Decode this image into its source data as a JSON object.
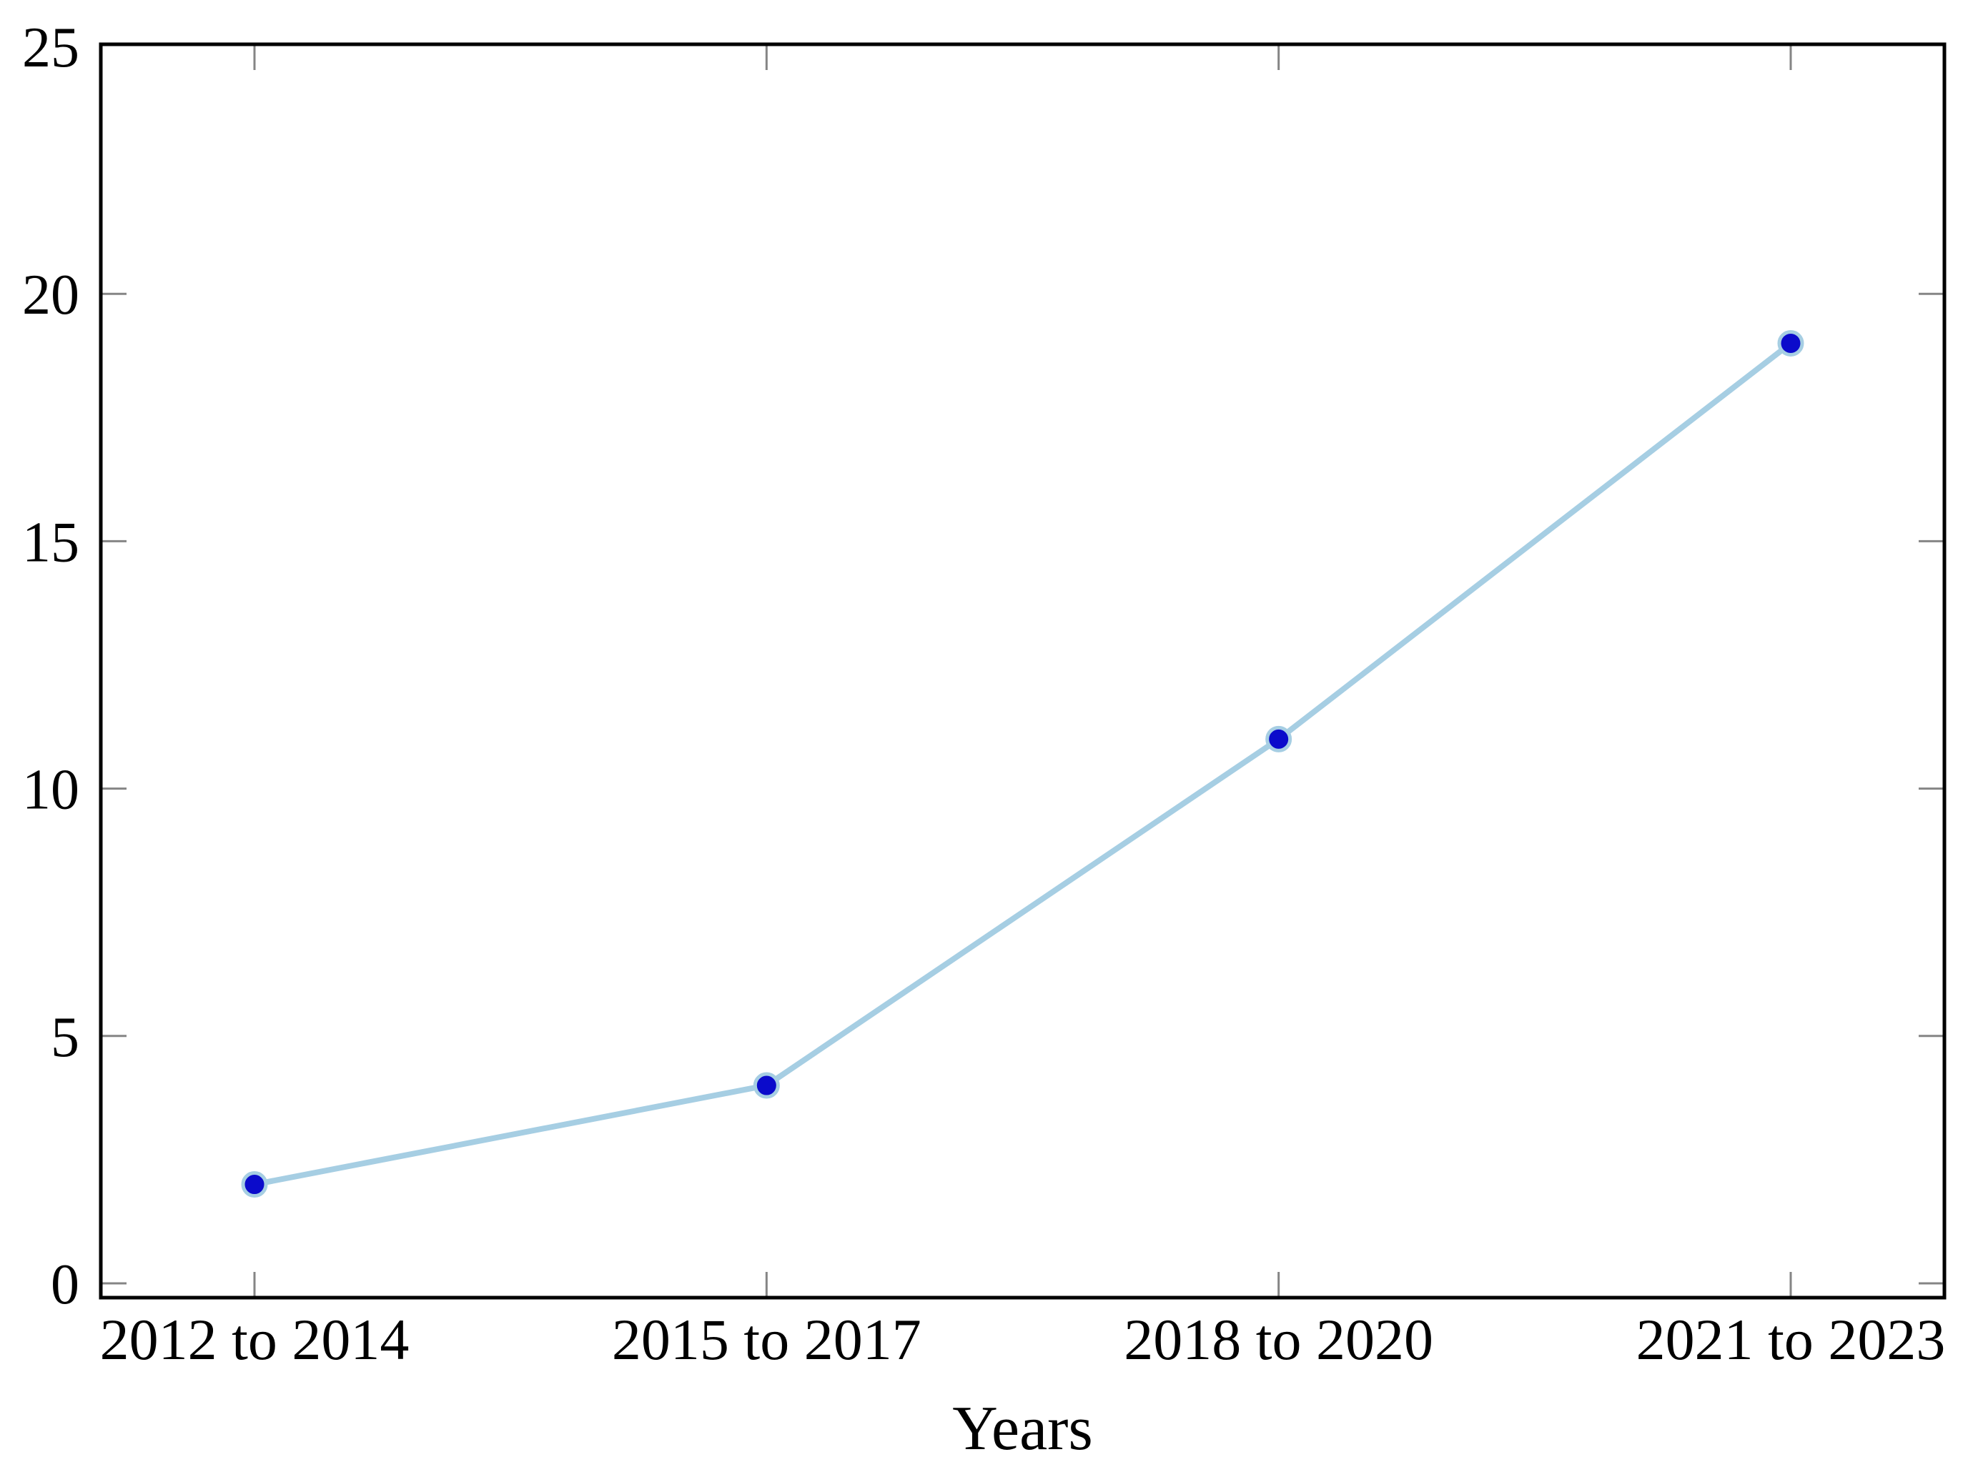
{
  "chart_data": {
    "type": "line",
    "title": "",
    "xlabel": "Years",
    "ylabel": "",
    "categories": [
      "2012 to 2014",
      "2015 to 2017",
      "2018 to 2020",
      "2021 to 2023"
    ],
    "values": [
      2,
      4,
      11,
      19
    ],
    "ylim": [
      0,
      25
    ],
    "yticks": [
      0,
      5,
      10,
      15,
      20,
      25
    ],
    "grid": false,
    "ticks_direction": "in",
    "frame": "full-box",
    "colors": {
      "line": "#a6cee3",
      "marker_fill": "#0b0bcb",
      "marker_edge": "#a6cee3",
      "axis": "#000000",
      "tick": "#858585",
      "text": "#000000",
      "background": "#ffffff"
    }
  }
}
